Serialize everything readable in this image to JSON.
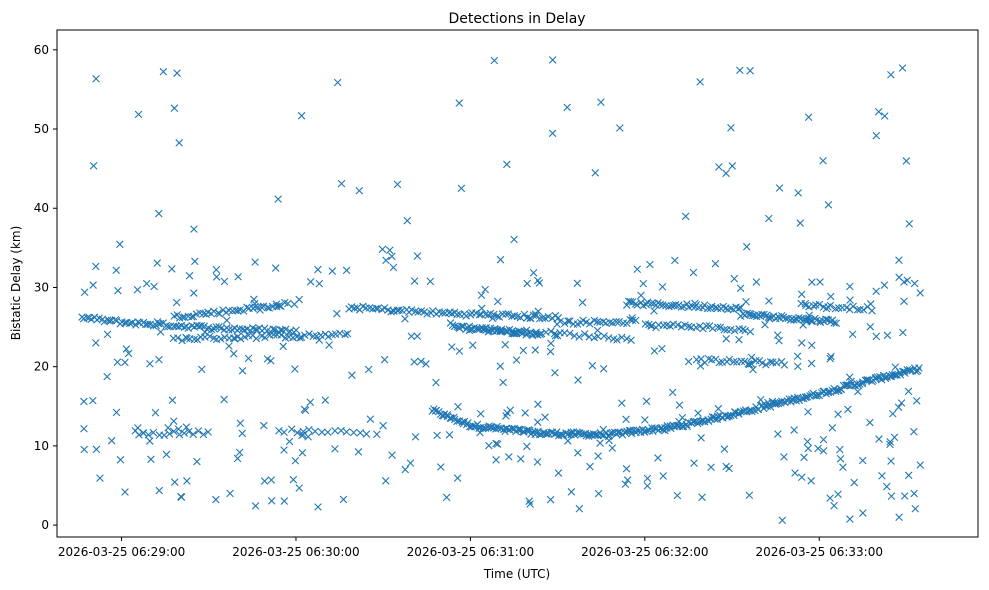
{
  "chart_data": {
    "type": "scatter",
    "title": "Detections in Delay",
    "xlabel": "Time (UTC)",
    "ylabel": "Bistatic Delay (km)",
    "xlim": [
      -0.37,
      4.91
    ],
    "ylim": [
      -1.5,
      62.5
    ],
    "x_unit": "minutes since 2026-03-25 06:29:00",
    "xticks": [
      0,
      1,
      2,
      3,
      4
    ],
    "xtick_labels": [
      "2026-03-25 06:29:00",
      "2026-03-25 06:30:00",
      "2026-03-25 06:31:00",
      "2026-03-25 06:32:00",
      "2026-03-25 06:33:00"
    ],
    "yticks": [
      0,
      10,
      20,
      30,
      40,
      50,
      60
    ],
    "ytick_labels": [
      "0",
      "10",
      "20",
      "30",
      "40",
      "50",
      "60"
    ],
    "marker": "x",
    "color": "#1f77b4",
    "grid": false,
    "tracks": [
      {
        "name": "lower-curve",
        "x_range": [
          1.78,
          4.57
        ],
        "points": [
          [
            1.78,
            14.5
          ],
          [
            2.0,
            12.6
          ],
          [
            2.4,
            11.6
          ],
          [
            2.8,
            11.4
          ],
          [
            3.2,
            12.5
          ],
          [
            3.6,
            14.5
          ],
          [
            4.0,
            16.6
          ],
          [
            4.3,
            18.3
          ],
          [
            4.57,
            19.7
          ]
        ],
        "count": 300
      },
      {
        "name": "upper-a",
        "x_range": [
          -0.23,
          1.0
        ],
        "points": [
          [
            -0.23,
            26.2
          ],
          [
            0.0,
            25.6
          ],
          [
            0.6,
            24.8
          ],
          [
            1.0,
            24.5
          ]
        ],
        "count": 85
      },
      {
        "name": "upper-b",
        "x_range": [
          0.3,
          0.95
        ],
        "points": [
          [
            0.3,
            26.3
          ],
          [
            0.6,
            27.0
          ],
          [
            0.95,
            27.9
          ]
        ],
        "count": 40
      },
      {
        "name": "upper-c",
        "x_range": [
          0.3,
          1.3
        ],
        "points": [
          [
            0.3,
            23.5
          ],
          [
            0.8,
            23.8
          ],
          [
            1.3,
            24.0
          ]
        ],
        "count": 45
      },
      {
        "name": "upper-d",
        "x_range": [
          1.3,
          2.5
        ],
        "points": [
          [
            1.3,
            27.5
          ],
          [
            1.8,
            26.8
          ],
          [
            2.5,
            26.2
          ]
        ],
        "count": 70
      },
      {
        "name": "upper-e",
        "x_range": [
          1.9,
          2.4
        ],
        "points": [
          [
            1.9,
            25.1
          ],
          [
            2.15,
            24.6
          ],
          [
            2.4,
            24.1
          ]
        ],
        "count": 50
      },
      {
        "name": "upper-f",
        "x_range": [
          2.1,
          2.9
        ],
        "points": [
          [
            2.1,
            24.6
          ],
          [
            2.5,
            24.2
          ],
          [
            2.9,
            23.5
          ]
        ],
        "count": 30
      },
      {
        "name": "upper-g",
        "x_range": [
          2.5,
          2.95
        ],
        "points": [
          [
            2.5,
            25.6
          ],
          [
            2.95,
            25.7
          ]
        ],
        "count": 25
      },
      {
        "name": "upper-h",
        "x_range": [
          2.9,
          3.55
        ],
        "points": [
          [
            2.9,
            28.0
          ],
          [
            3.55,
            27.4
          ]
        ],
        "count": 45
      },
      {
        "name": "upper-i",
        "x_range": [
          3.0,
          3.6
        ],
        "points": [
          [
            3.0,
            25.2
          ],
          [
            3.3,
            25.1
          ],
          [
            3.6,
            24.5
          ]
        ],
        "count": 30
      },
      {
        "name": "upper-j",
        "x_range": [
          3.55,
          4.1
        ],
        "points": [
          [
            3.55,
            26.6
          ],
          [
            4.1,
            25.7
          ]
        ],
        "count": 50
      },
      {
        "name": "upper-k",
        "x_range": [
          3.9,
          4.3
        ],
        "points": [
          [
            3.9,
            27.8
          ],
          [
            4.3,
            27.3
          ]
        ],
        "count": 20
      },
      {
        "name": "upper-l",
        "x_range": [
          3.3,
          3.8
        ],
        "points": [
          [
            3.3,
            20.8
          ],
          [
            3.55,
            20.6
          ],
          [
            3.8,
            20.4
          ]
        ],
        "count": 25
      },
      {
        "name": "lower-left-band",
        "x_range": [
          0.1,
          0.5
        ],
        "points": [
          [
            0.1,
            11.5
          ],
          [
            0.3,
            11.6
          ],
          [
            0.5,
            11.7
          ]
        ],
        "count": 15
      },
      {
        "name": "lower-mid-band",
        "x_range": [
          0.9,
          1.4
        ],
        "points": [
          [
            0.9,
            12.0
          ],
          [
            1.15,
            11.8
          ],
          [
            1.4,
            11.6
          ]
        ],
        "count": 15
      }
    ],
    "noise": {
      "count": 420,
      "x_range": [
        -0.23,
        4.62
      ],
      "y_range": [
        0.5,
        60.0
      ],
      "note": "scattered false detections, heavier between 0 and 35 km"
    }
  }
}
